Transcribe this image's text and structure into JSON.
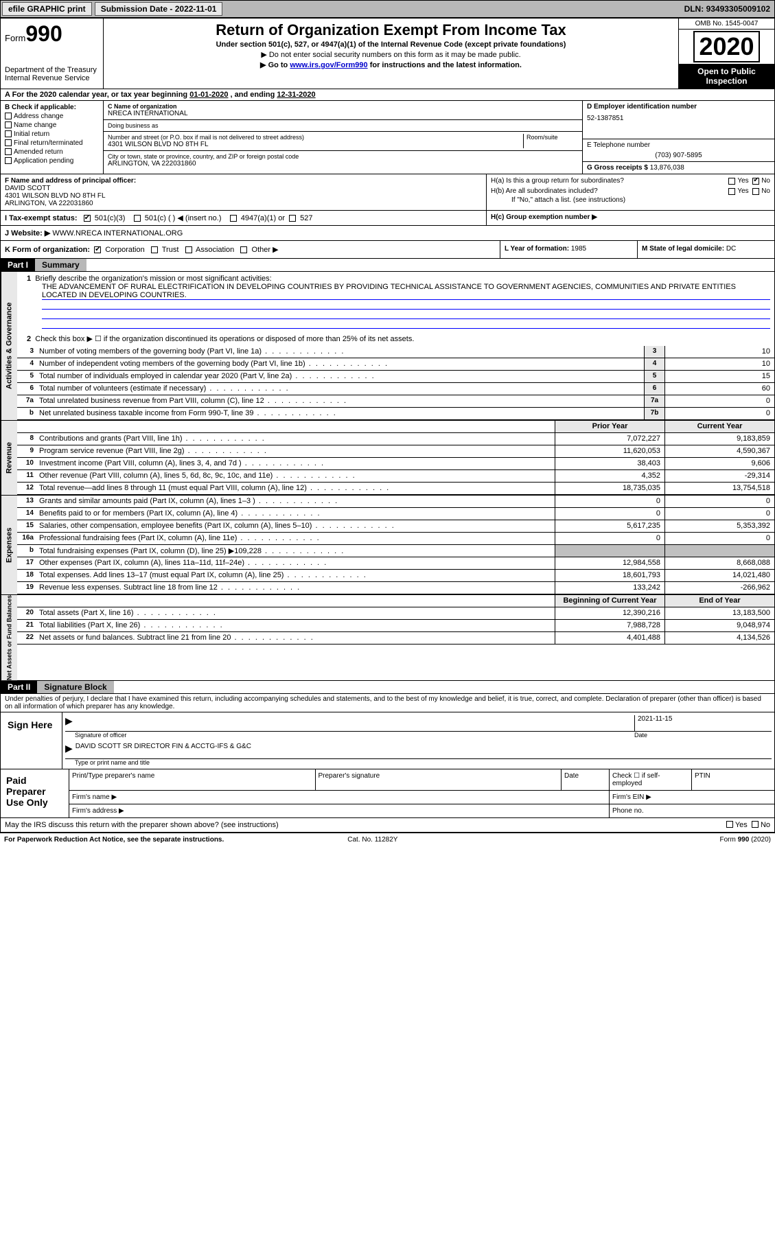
{
  "topbar": {
    "efile_btn": "efile GRAPHIC print",
    "sub_date_label": "Submission Date - ",
    "sub_date": "2022-11-01",
    "dln_label": "DLN: ",
    "dln": "93493305009102"
  },
  "header": {
    "form_label": "Form",
    "form_number": "990",
    "dept": "Department of the Treasury\nInternal Revenue Service",
    "title": "Return of Organization Exempt From Income Tax",
    "subtitle": "Under section 501(c), 527, or 4947(a)(1) of the Internal Revenue Code (except private foundations)",
    "note1": "▶ Do not enter social security numbers on this form as it may be made public.",
    "note2_prefix": "▶ Go to ",
    "note2_link": "www.irs.gov/Form990",
    "note2_suffix": " for instructions and the latest information.",
    "omb": "OMB No. 1545-0047",
    "year": "2020",
    "open_public": "Open to Public Inspection"
  },
  "row_a": {
    "text_prefix": "A For the 2020 calendar year, or tax year beginning ",
    "begin": "01-01-2020",
    "mid": " , and ending ",
    "end": "12-31-2020"
  },
  "col_b": {
    "header": "B Check if applicable:",
    "opts": [
      "Address change",
      "Name change",
      "Initial return",
      "Final return/terminated",
      "Amended return",
      "Application pending"
    ]
  },
  "col_c": {
    "name_label": "C Name of organization",
    "name": "NRECA INTERNATIONAL",
    "dba_label": "Doing business as",
    "dba": "",
    "addr_label": "Number and street (or P.O. box if mail is not delivered to street address)",
    "room_label": "Room/suite",
    "addr": "4301 WILSON BLVD NO 8TH FL",
    "city_label": "City or town, state or province, country, and ZIP or foreign postal code",
    "city": "ARLINGTON, VA  222031860"
  },
  "col_deg": {
    "d_label": "D Employer identification number",
    "d_val": "52-1387851",
    "e_label": "E Telephone number",
    "e_val": "(703) 907-5895",
    "g_label": "G Gross receipts $ ",
    "g_val": "13,876,038"
  },
  "row_f": {
    "label": "F Name and address of principal officer:",
    "name": "DAVID SCOTT",
    "addr1": "4301 WILSON BLVD NO 8TH FL",
    "addr2": "ARLINGTON, VA  222031860"
  },
  "row_h": {
    "ha": "H(a)  Is this a group return for subordinates?",
    "ha_ans": "No",
    "hb": "H(b)  Are all subordinates included?",
    "hb_note": "If \"No,\" attach a list. (see instructions)",
    "hc": "H(c)  Group exemption number ▶"
  },
  "row_i": {
    "label": "I    Tax-exempt status:",
    "opt1": "501(c)(3)",
    "opt2": "501(c) (  ) ◀ (insert no.)",
    "opt3": "4947(a)(1) or",
    "opt4": "527",
    "checked": "501(c)(3)"
  },
  "row_j": {
    "label": "J   Website: ▶  ",
    "val": "WWW.NRECA INTERNATIONAL.ORG"
  },
  "row_k": {
    "label": "K Form of organization:",
    "opts": [
      "Corporation",
      "Trust",
      "Association",
      "Other ▶"
    ],
    "checked": "Corporation"
  },
  "row_l": {
    "label": "L Year of formation: ",
    "val": "1985"
  },
  "row_m": {
    "label": "M State of legal domicile: ",
    "val": "DC"
  },
  "part1": {
    "hdr": "Part I",
    "title": "Summary",
    "gov_label": "Activities & Governance",
    "rev_label": "Revenue",
    "exp_label": "Expenses",
    "net_label": "Net Assets or Fund Balances",
    "line1_label": "Briefly describe the organization's mission or most significant activities:",
    "line1_val": "THE ADVANCEMENT OF RURAL ELECTRIFICATION IN DEVELOPING COUNTRIES BY PROVIDING TECHNICAL ASSISTANCE TO GOVERNMENT AGENCIES, COMMUNITIES AND PRIVATE ENTITIES LOCATED IN DEVELOPING COUNTRIES.",
    "line2": "Check this box ▶ ☐  if the organization discontinued its operations or disposed of more than 25% of its net assets.",
    "gov_lines": [
      {
        "n": "3",
        "t": "Number of voting members of the governing body (Part VI, line 1a)",
        "box": "3",
        "v": "10"
      },
      {
        "n": "4",
        "t": "Number of independent voting members of the governing body (Part VI, line 1b)",
        "box": "4",
        "v": "10"
      },
      {
        "n": "5",
        "t": "Total number of individuals employed in calendar year 2020 (Part V, line 2a)",
        "box": "5",
        "v": "15"
      },
      {
        "n": "6",
        "t": "Total number of volunteers (estimate if necessary)",
        "box": "6",
        "v": "60"
      },
      {
        "n": "7a",
        "t": "Total unrelated business revenue from Part VIII, column (C), line 12",
        "box": "7a",
        "v": "0"
      },
      {
        "n": "b",
        "t": "Net unrelated business taxable income from Form 990-T, line 39",
        "box": "7b",
        "v": "0"
      }
    ],
    "prior_hdr": "Prior Year",
    "current_hdr": "Current Year",
    "rev_lines": [
      {
        "n": "8",
        "t": "Contributions and grants (Part VIII, line 1h)",
        "py": "7,072,227",
        "cy": "9,183,859"
      },
      {
        "n": "9",
        "t": "Program service revenue (Part VIII, line 2g)",
        "py": "11,620,053",
        "cy": "4,590,367"
      },
      {
        "n": "10",
        "t": "Investment income (Part VIII, column (A), lines 3, 4, and 7d )",
        "py": "38,403",
        "cy": "9,606"
      },
      {
        "n": "11",
        "t": "Other revenue (Part VIII, column (A), lines 5, 6d, 8c, 9c, 10c, and 11e)",
        "py": "4,352",
        "cy": "-29,314"
      },
      {
        "n": "12",
        "t": "Total revenue—add lines 8 through 11 (must equal Part VIII, column (A), line 12)",
        "py": "18,735,035",
        "cy": "13,754,518"
      }
    ],
    "exp_lines": [
      {
        "n": "13",
        "t": "Grants and similar amounts paid (Part IX, column (A), lines 1–3 )",
        "py": "0",
        "cy": "0"
      },
      {
        "n": "14",
        "t": "Benefits paid to or for members (Part IX, column (A), line 4)",
        "py": "0",
        "cy": "0"
      },
      {
        "n": "15",
        "t": "Salaries, other compensation, employee benefits (Part IX, column (A), lines 5–10)",
        "py": "5,617,235",
        "cy": "5,353,392"
      },
      {
        "n": "16a",
        "t": "Professional fundraising fees (Part IX, column (A), line 11e)",
        "py": "0",
        "cy": "0"
      },
      {
        "n": "b",
        "t": "Total fundraising expenses (Part IX, column (D), line 25) ▶109,228",
        "py": "",
        "cy": "",
        "shade": true
      },
      {
        "n": "17",
        "t": "Other expenses (Part IX, column (A), lines 11a–11d, 11f–24e)",
        "py": "12,984,558",
        "cy": "8,668,088"
      },
      {
        "n": "18",
        "t": "Total expenses. Add lines 13–17 (must equal Part IX, column (A), line 25)",
        "py": "18,601,793",
        "cy": "14,021,480"
      },
      {
        "n": "19",
        "t": "Revenue less expenses. Subtract line 18 from line 12",
        "py": "133,242",
        "cy": "-266,962"
      }
    ],
    "net_hdr_l": "Beginning of Current Year",
    "net_hdr_r": "End of Year",
    "net_lines": [
      {
        "n": "20",
        "t": "Total assets (Part X, line 16)",
        "py": "12,390,216",
        "cy": "13,183,500"
      },
      {
        "n": "21",
        "t": "Total liabilities (Part X, line 26)",
        "py": "7,988,728",
        "cy": "9,048,974"
      },
      {
        "n": "22",
        "t": "Net assets or fund balances. Subtract line 21 from line 20",
        "py": "4,401,488",
        "cy": "4,134,526"
      }
    ]
  },
  "part2": {
    "hdr": "Part II",
    "title": "Signature Block",
    "decl": "Under penalties of perjury, I declare that I have examined this return, including accompanying schedules and statements, and to the best of my knowledge and belief, it is true, correct, and complete. Declaration of preparer (other than officer) is based on all information of which preparer has any knowledge.",
    "sign_here": "Sign Here",
    "sig_officer": "Signature of officer",
    "sig_date_label": "Date",
    "sig_date": "2021-11-15",
    "officer_name": "DAVID SCOTT  SR DIRECTOR FIN & ACCTG-IFS & G&C",
    "type_name": "Type or print name and title",
    "paid_label": "Paid Preparer Use Only",
    "p_cols": [
      "Print/Type preparer's name",
      "Preparer's signature",
      "Date",
      "Check ☐ if self-employed",
      "PTIN"
    ],
    "firm_name": "Firm's name  ▶",
    "firm_ein": "Firm's EIN ▶",
    "firm_addr": "Firm's address ▶",
    "phone": "Phone no.",
    "irs_discuss": "May the IRS discuss this return with the preparer shown above? (see instructions)",
    "yes": "Yes",
    "no": "No"
  },
  "footer": {
    "left": "For Paperwork Reduction Act Notice, see the separate instructions.",
    "mid": "Cat. No. 11282Y",
    "right": "Form 990 (2020)"
  }
}
